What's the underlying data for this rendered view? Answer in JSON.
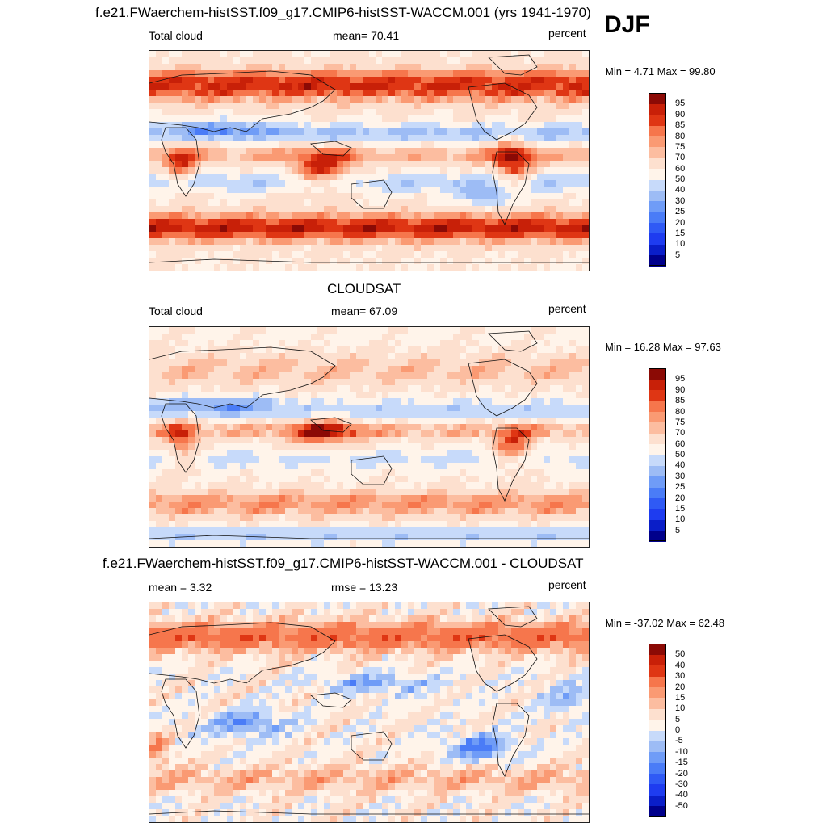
{
  "season": "DJF",
  "palette_seq": [
    "#00008b",
    "#0a1ec8",
    "#1e3cf0",
    "#2f5af5",
    "#4a7cf7",
    "#6f9cf7",
    "#9dbcf5",
    "#c7dafa",
    "#e2eefc",
    "#fff4ea",
    "#fde0cf",
    "#fcbda0",
    "#fa9a73",
    "#f6764c",
    "#ee5428",
    "#df3614",
    "#c82008",
    "#a8150a",
    "#8b0a05"
  ],
  "panels": [
    {
      "id": "model",
      "title": "f.e21.FWaerchem-histSST.f09_g17.CMIP6-histSST-WACCM.001 (yrs 1941-1970)",
      "left_label": "Total cloud",
      "center_label": "mean=  70.41",
      "right_label": "percent",
      "minmax": "Min =   4.71 Max =  99.80",
      "colorbar_ticks": [
        "5",
        "10",
        "15",
        "20",
        "25",
        "30",
        "40",
        "50",
        "60",
        "70",
        "75",
        "80",
        "85",
        "90",
        "95"
      ],
      "field": "model"
    },
    {
      "id": "obs",
      "title": "CLOUDSAT",
      "left_label": "Total cloud",
      "center_label": "mean=  67.09",
      "right_label": "percent",
      "minmax": "Min =  16.28 Max =  97.63",
      "colorbar_ticks": [
        "5",
        "10",
        "15",
        "20",
        "25",
        "30",
        "40",
        "50",
        "60",
        "70",
        "75",
        "80",
        "85",
        "90",
        "95"
      ],
      "field": "obs"
    },
    {
      "id": "diff",
      "title": "f.e21.FWaerchem-histSST.f09_g17.CMIP6-histSST-WACCM.001 - CLOUDSAT",
      "left_label": "mean =   3.32",
      "center_label": "rmse =  13.23",
      "right_label": "percent",
      "minmax": "Min = -37.02 Max =  62.48",
      "colorbar_ticks": [
        "-50",
        "-40",
        "-30",
        "-20",
        "-15",
        "-10",
        "-5",
        "0",
        "5",
        "10",
        "15",
        "20",
        "30",
        "40",
        "50"
      ],
      "field": "diff"
    }
  ]
}
